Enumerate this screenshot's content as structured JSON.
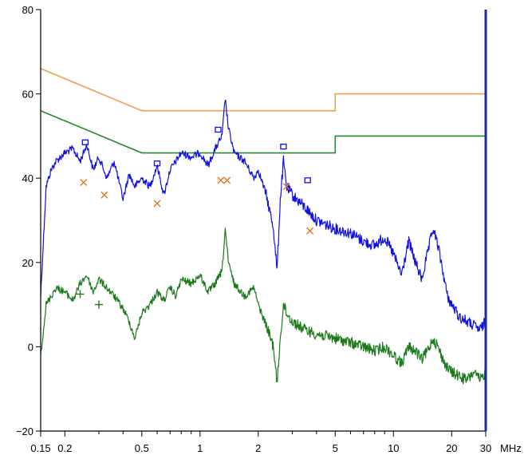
{
  "chart_data": {
    "type": "line",
    "title": "",
    "xlabel": "",
    "ylabel": "",
    "x_unit": "MHz",
    "x_scale": "log",
    "xlim": [
      0.15,
      30
    ],
    "ylim": [
      -20,
      80
    ],
    "grid": false,
    "legend": "none",
    "x_ticks": [
      {
        "value": 0.15,
        "label": "0.15"
      },
      {
        "value": 0.2,
        "label": "0.2"
      },
      {
        "value": 0.5,
        "label": "0.5"
      },
      {
        "value": 1,
        "label": "1"
      },
      {
        "value": 2,
        "label": "2"
      },
      {
        "value": 5,
        "label": "5"
      },
      {
        "value": 10,
        "label": "10"
      },
      {
        "value": 20,
        "label": "20"
      },
      {
        "value": 30,
        "label": "30"
      }
    ],
    "y_ticks": [
      {
        "value": 80,
        "label": "80"
      },
      {
        "value": 60,
        "label": "60"
      },
      {
        "value": 40,
        "label": "40"
      },
      {
        "value": 20,
        "label": "20"
      },
      {
        "value": 0,
        "label": "0"
      },
      {
        "value": -20,
        "label": "−20"
      }
    ],
    "series": [
      {
        "kind": "limit",
        "color": "#e8a050",
        "x": [
          0.15,
          0.5,
          5,
          5,
          30
        ],
        "y": [
          66,
          56,
          56,
          60,
          60
        ]
      },
      {
        "kind": "limit",
        "color": "#2a8a2a",
        "x": [
          0.15,
          0.5,
          5,
          5,
          30
        ],
        "y": [
          56,
          46,
          46,
          50,
          50
        ]
      },
      {
        "kind": "trace",
        "color": "#1010e0",
        "x": [
          0.15,
          0.16,
          0.17,
          0.18,
          0.2,
          0.22,
          0.24,
          0.26,
          0.28,
          0.3,
          0.33,
          0.36,
          0.4,
          0.43,
          0.46,
          0.5,
          0.55,
          0.6,
          0.65,
          0.7,
          0.75,
          0.8,
          0.9,
          1.0,
          1.1,
          1.2,
          1.3,
          1.35,
          1.4,
          1.5,
          1.7,
          1.9,
          2.0,
          2.2,
          2.4,
          2.5,
          2.6,
          2.7,
          2.8,
          3.0,
          3.5,
          4.0,
          5.0,
          6.0,
          7.0,
          8.0,
          9.0,
          10.0,
          11.0,
          12.0,
          13.0,
          14.0,
          15.0,
          16.0,
          17.0,
          18.0,
          19.0,
          20.0,
          22.0,
          24.0,
          26.0,
          28.0,
          30.0
        ],
        "y": [
          12,
          38,
          42,
          44,
          46,
          47,
          44,
          48,
          42,
          45,
          40,
          44,
          35,
          41,
          38,
          40,
          38,
          43,
          36,
          42,
          44,
          46,
          45,
          46,
          43,
          47,
          50,
          59,
          52,
          46,
          44,
          40,
          42,
          36,
          28,
          18,
          35,
          44,
          38,
          36,
          33,
          30,
          28,
          27,
          25,
          24,
          26,
          22,
          17,
          25,
          20,
          16,
          22,
          28,
          24,
          18,
          12,
          10,
          7,
          6,
          5,
          4,
          6
        ]
      },
      {
        "kind": "trace",
        "color": "#1a7a1a",
        "x": [
          0.15,
          0.16,
          0.17,
          0.18,
          0.2,
          0.22,
          0.24,
          0.26,
          0.28,
          0.3,
          0.33,
          0.36,
          0.4,
          0.43,
          0.46,
          0.5,
          0.55,
          0.6,
          0.65,
          0.7,
          0.75,
          0.8,
          0.9,
          1.0,
          1.1,
          1.2,
          1.3,
          1.35,
          1.4,
          1.5,
          1.7,
          1.9,
          2.0,
          2.2,
          2.4,
          2.5,
          2.6,
          2.7,
          2.8,
          3.0,
          3.5,
          4.0,
          5.0,
          6.0,
          7.0,
          8.0,
          9.0,
          10.0,
          11.0,
          12.0,
          13.0,
          14.0,
          15.0,
          16.0,
          17.0,
          18.0,
          19.0,
          20.0,
          22.0,
          24.0,
          26.0,
          28.0,
          30.0
        ],
        "y": [
          -2,
          10,
          12,
          14,
          13,
          11,
          15,
          17,
          13,
          16,
          14,
          12,
          9,
          6,
          2,
          8,
          10,
          13,
          11,
          14,
          12,
          16,
          15,
          17,
          13,
          15,
          18,
          28,
          20,
          15,
          12,
          14,
          10,
          5,
          0,
          -9,
          2,
          10,
          8,
          6,
          4,
          3,
          2,
          1,
          0,
          -1,
          0,
          -2,
          -4,
          0,
          -1,
          -3,
          -1,
          2,
          0,
          -3,
          -5,
          -6,
          -7,
          -8,
          -6,
          -8,
          -6
        ]
      }
    ],
    "markers": [
      {
        "shape": "square",
        "color": "#1010e0",
        "x": [
          0.255,
          0.6,
          1.24,
          2.7,
          3.6
        ],
        "y": [
          48.5,
          43.5,
          51.5,
          47.5,
          39.5
        ]
      },
      {
        "shape": "x",
        "color": "#e07820",
        "x": [
          0.25,
          0.32,
          0.6,
          1.28,
          1.38,
          2.8,
          3.7
        ],
        "y": [
          39,
          36,
          34,
          39.5,
          39.5,
          38,
          27.5
        ]
      },
      {
        "shape": "plus",
        "color": "#1a7a1a",
        "x": [
          0.24,
          0.3
        ],
        "y": [
          12.5,
          10
        ]
      }
    ]
  }
}
